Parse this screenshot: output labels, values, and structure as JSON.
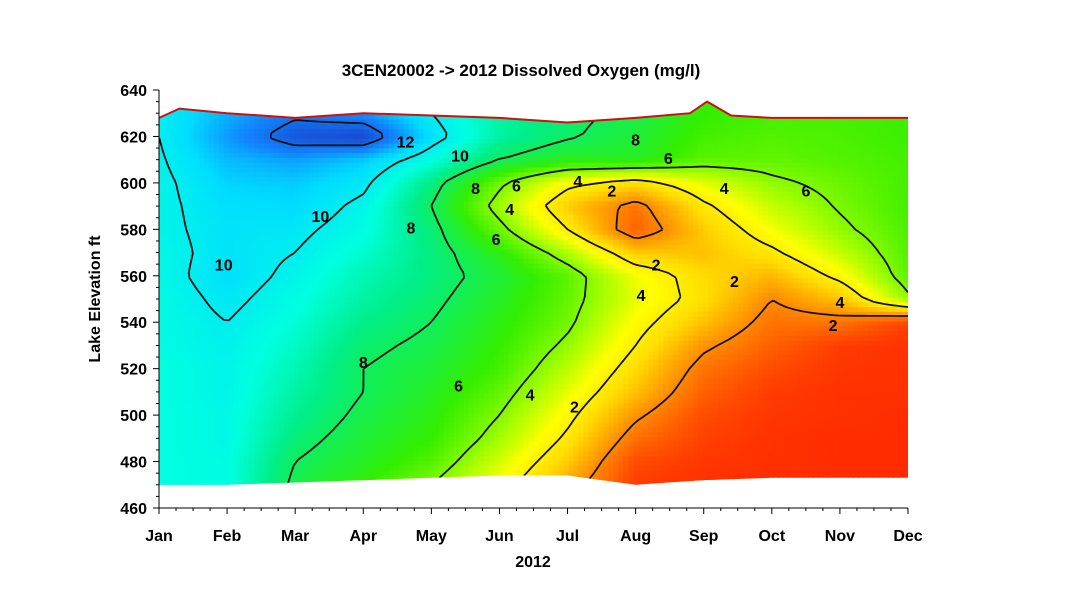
{
  "chart_data": {
    "type": "heatmap",
    "title": "3CEN20002  ->  2012 Dissolved Oxygen (mg/l)",
    "xlabel": "2012",
    "ylabel": "Lake  Elevation  ft",
    "x_ticks": [
      "Jan",
      "Feb",
      "Mar",
      "Apr",
      "May",
      "Jun",
      "Jul",
      "Aug",
      "Sep",
      "Oct",
      "Nov",
      "Dec"
    ],
    "y_ticks": [
      460,
      480,
      500,
      520,
      540,
      560,
      580,
      600,
      620,
      640
    ],
    "ylim": [
      460,
      640
    ],
    "xlim": [
      0,
      11
    ],
    "value_unit": "mg/l",
    "color_scale": [
      {
        "value": 0,
        "color": "#ff2200"
      },
      {
        "value": 2,
        "color": "#ff8800"
      },
      {
        "value": 3.5,
        "color": "#ffdd00"
      },
      {
        "value": 4.5,
        "color": "#ffff00"
      },
      {
        "value": 5.5,
        "color": "#aaff00"
      },
      {
        "value": 7,
        "color": "#33ee00"
      },
      {
        "value": 8.5,
        "color": "#00ee88"
      },
      {
        "value": 9.5,
        "color": "#00ffe0"
      },
      {
        "value": 10.5,
        "color": "#00ddff"
      },
      {
        "value": 11.5,
        "color": "#1188ff"
      },
      {
        "value": 13,
        "color": "#1a3ac8"
      }
    ],
    "surface_elevation": [
      {
        "x": 0.0,
        "y": 628
      },
      {
        "x": 0.3,
        "y": 632
      },
      {
        "x": 1.0,
        "y": 630
      },
      {
        "x": 2.0,
        "y": 628
      },
      {
        "x": 3.0,
        "y": 630
      },
      {
        "x": 4.0,
        "y": 629
      },
      {
        "x": 5.0,
        "y": 628
      },
      {
        "x": 6.0,
        "y": 626
      },
      {
        "x": 7.0,
        "y": 628
      },
      {
        "x": 7.8,
        "y": 630
      },
      {
        "x": 8.05,
        "y": 635
      },
      {
        "x": 8.4,
        "y": 629
      },
      {
        "x": 9.0,
        "y": 628
      },
      {
        "x": 10.0,
        "y": 628
      },
      {
        "x": 11.0,
        "y": 628
      }
    ],
    "bottom_elevation": [
      {
        "x": 0.0,
        "y": 470
      },
      {
        "x": 1.0,
        "y": 470
      },
      {
        "x": 2.0,
        "y": 471
      },
      {
        "x": 3.0,
        "y": 472
      },
      {
        "x": 4.0,
        "y": 473
      },
      {
        "x": 5.0,
        "y": 474
      },
      {
        "x": 6.0,
        "y": 474
      },
      {
        "x": 7.0,
        "y": 470
      },
      {
        "x": 8.0,
        "y": 472
      },
      {
        "x": 9.0,
        "y": 473
      },
      {
        "x": 10.0,
        "y": 473
      },
      {
        "x": 11.0,
        "y": 473
      }
    ],
    "grid": {
      "x": [
        0,
        1,
        2,
        3,
        4,
        5,
        6,
        7,
        8,
        9,
        10,
        11
      ],
      "y": [
        470,
        480,
        490,
        500,
        510,
        520,
        530,
        540,
        550,
        560,
        570,
        580,
        590,
        600,
        610,
        620,
        630
      ],
      "z": [
        [
          9.5,
          9.6,
          7.8,
          7.0,
          6.0,
          4.5,
          2.5,
          0.5,
          0.3,
          0.2,
          0.2,
          0.2
        ],
        [
          9.5,
          9.6,
          8.0,
          7.4,
          6.6,
          5.0,
          3.2,
          0.8,
          0.4,
          0.3,
          0.2,
          0.2
        ],
        [
          9.5,
          9.7,
          8.3,
          7.6,
          7.0,
          5.6,
          3.8,
          1.5,
          0.6,
          0.3,
          0.2,
          0.2
        ],
        [
          9.5,
          9.7,
          8.6,
          7.8,
          7.2,
          6.0,
          4.3,
          2.2,
          0.8,
          0.4,
          0.3,
          0.2
        ],
        [
          9.5,
          9.8,
          8.8,
          8.0,
          7.4,
          6.4,
          4.8,
          3.0,
          1.2,
          0.5,
          0.3,
          0.3
        ],
        [
          9.5,
          9.8,
          9.0,
          8.0,
          7.6,
          6.8,
          5.3,
          3.5,
          1.6,
          0.8,
          0.4,
          0.3
        ],
        [
          9.6,
          9.9,
          9.2,
          8.2,
          7.8,
          7.0,
          5.8,
          4.0,
          2.2,
          1.2,
          0.5,
          0.3
        ],
        [
          9.6,
          10.0,
          9.4,
          8.5,
          8.0,
          7.2,
          6.2,
          4.4,
          3.0,
          1.6,
          1.6,
          0.6
        ],
        [
          9.6,
          10.2,
          9.6,
          8.8,
          8.2,
          7.4,
          6.4,
          4.8,
          3.6,
          2.0,
          3.0,
          5.8
        ],
        [
          9.7,
          10.4,
          9.8,
          9.0,
          8.4,
          7.6,
          6.5,
          4.7,
          3.5,
          2.8,
          4.3,
          6.5
        ],
        [
          9.7,
          10.3,
          10.0,
          9.3,
          8.4,
          7.2,
          5.5,
          3.2,
          3.0,
          3.8,
          5.2,
          6.6
        ],
        [
          9.8,
          10.3,
          10.2,
          9.6,
          8.3,
          6.3,
          4.0,
          1.2,
          3.2,
          4.6,
          5.8,
          6.7
        ],
        [
          9.8,
          10.4,
          10.5,
          9.8,
          8.0,
          5.6,
          3.2,
          1.6,
          3.8,
          5.2,
          6.1,
          6.8
        ],
        [
          9.8,
          10.6,
          10.7,
          10.2,
          8.4,
          6.2,
          4.3,
          3.5,
          4.8,
          5.8,
          6.3,
          6.8
        ],
        [
          9.9,
          10.9,
          11.2,
          10.7,
          9.5,
          8.0,
          7.3,
          7.4,
          6.5,
          6.4,
          6.6,
          6.8
        ],
        [
          10.0,
          11.3,
          12.5,
          12.8,
          10.4,
          8.8,
          8.1,
          7.6,
          6.8,
          6.6,
          6.7,
          6.9
        ],
        [
          10.0,
          11.0,
          11.8,
          11.4,
          10.0,
          8.8,
          8.2,
          7.8,
          7.0,
          6.8,
          6.8,
          6.9
        ]
      ]
    },
    "contour_levels": [
      2,
      4,
      6,
      8,
      10,
      12
    ],
    "contour_labels": [
      {
        "text": "12",
        "x": 3.62,
        "y": 617
      },
      {
        "text": "10",
        "x": 4.42,
        "y": 611
      },
      {
        "text": "10",
        "x": 2.37,
        "y": 585
      },
      {
        "text": "10",
        "x": 0.95,
        "y": 564
      },
      {
        "text": "8",
        "x": 4.65,
        "y": 597
      },
      {
        "text": "8",
        "x": 7.0,
        "y": 618
      },
      {
        "text": "8",
        "x": 3.7,
        "y": 580
      },
      {
        "text": "8",
        "x": 3.0,
        "y": 522
      },
      {
        "text": "6",
        "x": 5.25,
        "y": 598
      },
      {
        "text": "6",
        "x": 7.48,
        "y": 610
      },
      {
        "text": "6",
        "x": 4.95,
        "y": 575
      },
      {
        "text": "6",
        "x": 4.4,
        "y": 512
      },
      {
        "text": "6",
        "x": 9.5,
        "y": 596
      },
      {
        "text": "4",
        "x": 6.15,
        "y": 600
      },
      {
        "text": "4",
        "x": 5.15,
        "y": 588
      },
      {
        "text": "4",
        "x": 7.08,
        "y": 551
      },
      {
        "text": "4",
        "x": 8.3,
        "y": 597
      },
      {
        "text": "4",
        "x": 5.45,
        "y": 508
      },
      {
        "text": "4",
        "x": 10.0,
        "y": 548
      },
      {
        "text": "2",
        "x": 6.65,
        "y": 596
      },
      {
        "text": "2",
        "x": 7.3,
        "y": 564
      },
      {
        "text": "2",
        "x": 8.45,
        "y": 557
      },
      {
        "text": "2",
        "x": 6.1,
        "y": 503
      },
      {
        "text": "2",
        "x": 9.9,
        "y": 538
      }
    ]
  }
}
